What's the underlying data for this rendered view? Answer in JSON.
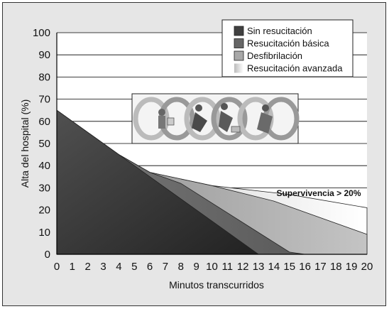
{
  "chart_data": {
    "type": "area",
    "xlabel": "Minutos transcurridos",
    "ylabel": "Alta del hospital (%)",
    "xlim": [
      0,
      20
    ],
    "ylim": [
      0,
      100
    ],
    "xticks": [
      0,
      1,
      2,
      3,
      4,
      5,
      6,
      7,
      8,
      9,
      10,
      11,
      12,
      13,
      14,
      15,
      16,
      17,
      18,
      19,
      20
    ],
    "yticks": [
      0,
      10,
      20,
      30,
      40,
      50,
      60,
      70,
      80,
      90,
      100
    ],
    "grid": "horizontal",
    "legend_position": "top-right",
    "series": [
      {
        "name": "Resucitación avanzada",
        "color": "#f2f2f2",
        "points": [
          [
            0,
            65
          ],
          [
            4,
            45
          ],
          [
            6,
            37
          ],
          [
            10,
            31
          ],
          [
            15,
            27
          ],
          [
            20,
            21
          ],
          [
            20,
            0
          ],
          [
            0,
            0
          ]
        ]
      },
      {
        "name": "Desfibrilación",
        "color": "#a8a8a8",
        "points": [
          [
            0,
            65
          ],
          [
            4,
            45
          ],
          [
            6,
            37
          ],
          [
            10,
            31
          ],
          [
            14,
            24
          ],
          [
            20,
            9
          ],
          [
            20,
            0
          ],
          [
            0,
            0
          ]
        ]
      },
      {
        "name": "Resucitación básica",
        "color": "#6a6a6a",
        "points": [
          [
            0,
            65
          ],
          [
            4,
            45
          ],
          [
            6,
            37
          ],
          [
            8,
            32
          ],
          [
            15,
            1
          ],
          [
            16,
            0
          ],
          [
            0,
            0
          ]
        ]
      },
      {
        "name": "Sin resucitación",
        "color": "#3a3a3a",
        "points": [
          [
            0,
            65
          ],
          [
            13,
            0
          ],
          [
            0,
            0
          ]
        ]
      }
    ],
    "annotation": {
      "text": "Supervivencia > 20%",
      "x": 17.9,
      "y": 26
    }
  }
}
